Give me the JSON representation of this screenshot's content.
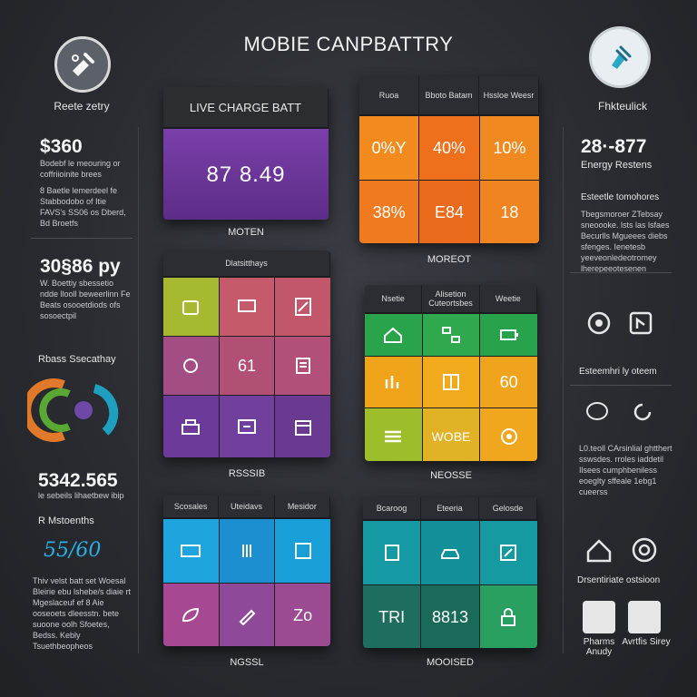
{
  "title": "MOBIE CANPBATTRY",
  "left": {
    "logo_label": "Reete zetry",
    "big1": "$360",
    "text1": "Bodebf le meouring or coffriioinite brees",
    "text2": "8 Baetle lemerdeel fe Stabbodobo of Itie FAVS's SS06 os Dberd, Bd Broetfs",
    "big2": "30§86 py",
    "text3": "W. Boettiy sbessetio ndde llooll beweerlinn Fe Beats osooetdiods ofs sosoectpil",
    "section_label": "Rbass Ssecathay",
    "big3": "5342.565",
    "text4": "le sebeils lihaetbew ibip",
    "label5": "R Mstoenths",
    "scribble": "55/60",
    "text5": "Thiv velst batt set Woesal Bleirie ebu lshebe/s diaie rt Mgeslaceuf ef 8 Aie ooseoets dleesstn. bete suoone oolh Sfoetes, Bedss. Kebly  Tsuethbeopheos"
  },
  "right": {
    "logo_label": "Fhkteulick",
    "big1": "28·-877",
    "sub1": "Energy Restens",
    "heading2": "Esteetle tomohores",
    "text2": "Tbegsmoroer ZTebsay sneoooke. lsts las lsfaes Becurlls Mgueees diebs sfenges. Ienetesb yeeveonledeotromey lherepeeotesenen",
    "label3": "Esteemhri ly oteem",
    "text4": "L0.teoll CArsinlial ghtthert sswsdes. rroles iaddetil Ilsees cumphbeniless eoeglty sffeale 1ebg1 cueerss",
    "label5": "Drsentiriate ostsioon",
    "caption_a": "Pharms Anudy",
    "caption_b": "Avrtfis Sirey"
  },
  "panels": {
    "p1": {
      "head": "LIVE CHARGE BATT",
      "value": "87 8.49",
      "caption": "MOTEN"
    },
    "p2": {
      "head": [
        "Ruoa",
        "Bboto Batam",
        "Hssloe Weesr"
      ],
      "cells": [
        "0%Y",
        "40%",
        "10%",
        "38%",
        "E84",
        "18"
      ],
      "caption": "MOREOT"
    },
    "p3": {
      "head": "Dlatsitthays",
      "cells": [
        "",
        "",
        "",
        "",
        "61",
        "",
        "",
        "",
        ""
      ],
      "caption": "RSSSIB"
    },
    "p4": {
      "head": [
        "Nsetie",
        "Alisetion Cuteortsbes",
        "Weetie"
      ],
      "cells": [
        "",
        "",
        "",
        "",
        "",
        "60",
        "",
        "WOBE",
        ""
      ],
      "caption": "NEOSSE"
    },
    "p5": {
      "head": [
        "Scosales",
        "Uteidavs",
        "Mesidor"
      ],
      "cells": [
        "",
        "",
        "",
        "",
        "",
        "Zo"
      ],
      "caption": "NGSSL"
    },
    "p6": {
      "head": [
        "Bcaroog",
        "Eteeria",
        "Gelosde"
      ],
      "cells": [
        "",
        "",
        "",
        "TRI",
        "8813",
        ""
      ],
      "caption": "MOOISED"
    }
  }
}
